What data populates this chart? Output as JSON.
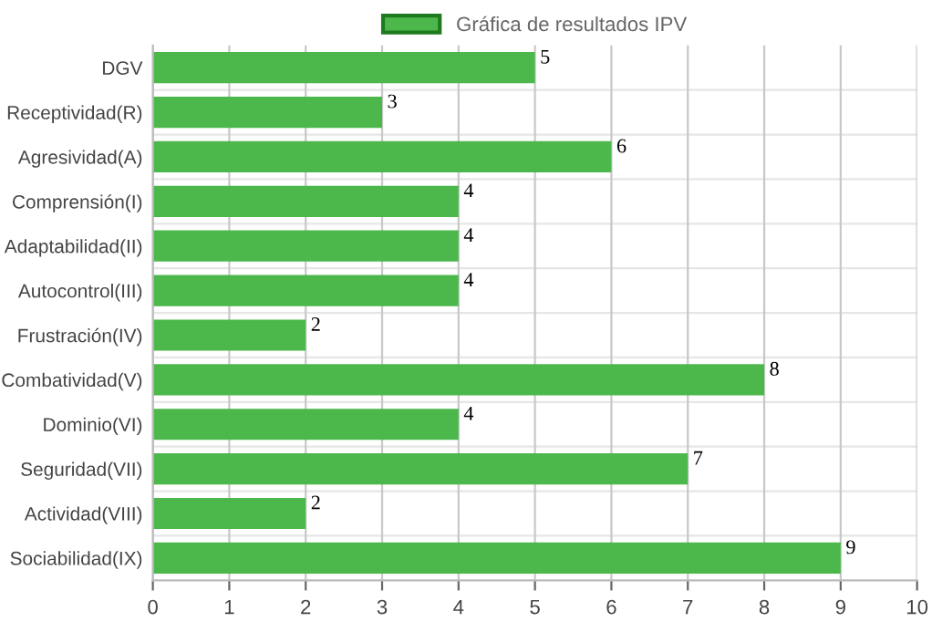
{
  "chart_data": {
    "type": "bar",
    "orientation": "horizontal",
    "categories": [
      "DGV",
      "Receptividad(R)",
      "Agresividad(A)",
      "Comprensión(I)",
      "Adaptabilidad(II)",
      "Autocontrol(III)",
      "Frustración(IV)",
      "Combatividad(V)",
      "Dominio(VI)",
      "Seguridad(VII)",
      "Actividad(VIII)",
      "Sociabilidad(IX)"
    ],
    "series": [
      {
        "name": "Gráfica de resultados IPV",
        "color": "#4cb84c",
        "values": [
          5,
          3,
          6,
          4,
          4,
          4,
          2,
          8,
          4,
          7,
          2,
          9
        ]
      }
    ],
    "xlim": [
      0,
      10
    ],
    "xticks": [
      0,
      1,
      2,
      3,
      4,
      5,
      6,
      7,
      8,
      9,
      10
    ],
    "grid": true,
    "legend": "top",
    "data_labels": true
  }
}
